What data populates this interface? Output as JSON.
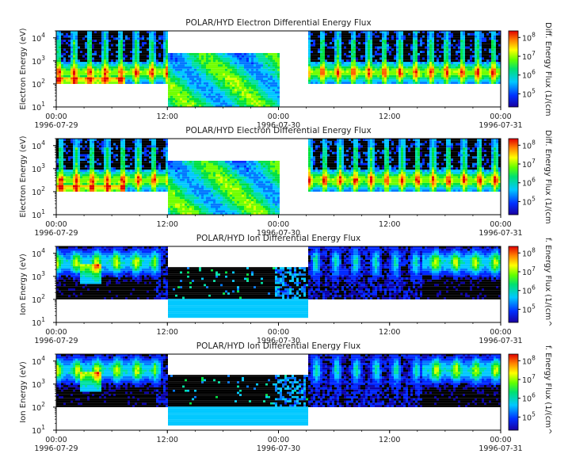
{
  "chart_data": [
    {
      "type": "heatmap",
      "title": "POLAR/HYD  Electron Differential Energy Flux",
      "ylabel": "Electron Energy (eV)",
      "yscale": "log",
      "ylim": [
        10,
        20000
      ],
      "y_ticks": [
        "10",
        "10",
        "10",
        "10"
      ],
      "y_tick_exps": [
        "1",
        "2",
        "3",
        "4"
      ],
      "x_ticks": [
        {
          "time": "00:00",
          "date": "1996-07-29"
        },
        {
          "time": "12:00",
          "date": ""
        },
        {
          "time": "00:00",
          "date": "1996-07-30"
        },
        {
          "time": "12:00",
          "date": ""
        },
        {
          "time": "00:00",
          "date": "1996-07-31"
        }
      ],
      "colorbar": {
        "label": "Diff. Energy Flux (1/(cm",
        "scale": "log",
        "ticks": [
          "10",
          "10",
          "10",
          "10"
        ],
        "tick_exps": [
          "5",
          "6",
          "7",
          "8"
        ]
      }
    },
    {
      "type": "heatmap",
      "title": "POLAR/HYD  Electron Differential Energy Flux",
      "ylabel": "Electron Energy (eV)",
      "yscale": "log",
      "ylim": [
        10,
        20000
      ],
      "y_ticks": [
        "10",
        "10",
        "10",
        "10"
      ],
      "y_tick_exps": [
        "1",
        "2",
        "3",
        "4"
      ],
      "x_ticks": [
        {
          "time": "00:00",
          "date": "1996-07-29"
        },
        {
          "time": "12:00",
          "date": ""
        },
        {
          "time": "00:00",
          "date": "1996-07-30"
        },
        {
          "time": "12:00",
          "date": ""
        },
        {
          "time": "00:00",
          "date": "1996-07-31"
        }
      ],
      "colorbar": {
        "label": "Diff. Energy Flux (1/(cm",
        "scale": "log",
        "ticks": [
          "10",
          "10",
          "10",
          "10"
        ],
        "tick_exps": [
          "5",
          "6",
          "7",
          "8"
        ]
      }
    },
    {
      "type": "heatmap",
      "title": "POLAR/HYD  Ion Differential Energy Flux",
      "ylabel": "Ion Energy (eV)",
      "yscale": "log",
      "ylim": [
        10,
        20000
      ],
      "y_ticks": [
        "10",
        "10",
        "10",
        "10"
      ],
      "y_tick_exps": [
        "1",
        "2",
        "3",
        "4"
      ],
      "x_ticks": [
        {
          "time": "00:00",
          "date": "1996-07-29"
        },
        {
          "time": "12:00",
          "date": ""
        },
        {
          "time": "00:00",
          "date": "1996-07-30"
        },
        {
          "time": "12:00",
          "date": ""
        },
        {
          "time": "00:00",
          "date": "1996-07-31"
        }
      ],
      "colorbar": {
        "label": "f. Energy Flux (1/(cm^",
        "scale": "log",
        "ticks": [
          "10",
          "10",
          "10",
          "10"
        ],
        "tick_exps": [
          "5",
          "6",
          "7",
          "8"
        ]
      }
    },
    {
      "type": "heatmap",
      "title": "POLAR/HYD  Ion Differential Energy Flux",
      "ylabel": "Ion Energy (eV)",
      "yscale": "log",
      "ylim": [
        10,
        20000
      ],
      "y_ticks": [
        "10",
        "10",
        "10",
        "10"
      ],
      "y_tick_exps": [
        "1",
        "2",
        "3",
        "4"
      ],
      "x_ticks": [
        {
          "time": "00:00",
          "date": "1996-07-29"
        },
        {
          "time": "12:00",
          "date": ""
        },
        {
          "time": "00:00",
          "date": "1996-07-30"
        },
        {
          "time": "12:00",
          "date": ""
        },
        {
          "time": "00:00",
          "date": "1996-07-31"
        }
      ],
      "colorbar": {
        "label": "f. Energy Flux (1/(cm^",
        "scale": "log",
        "ticks": [
          "10",
          "10",
          "10",
          "10"
        ],
        "tick_exps": [
          "5",
          "6",
          "7",
          "8"
        ]
      }
    }
  ]
}
